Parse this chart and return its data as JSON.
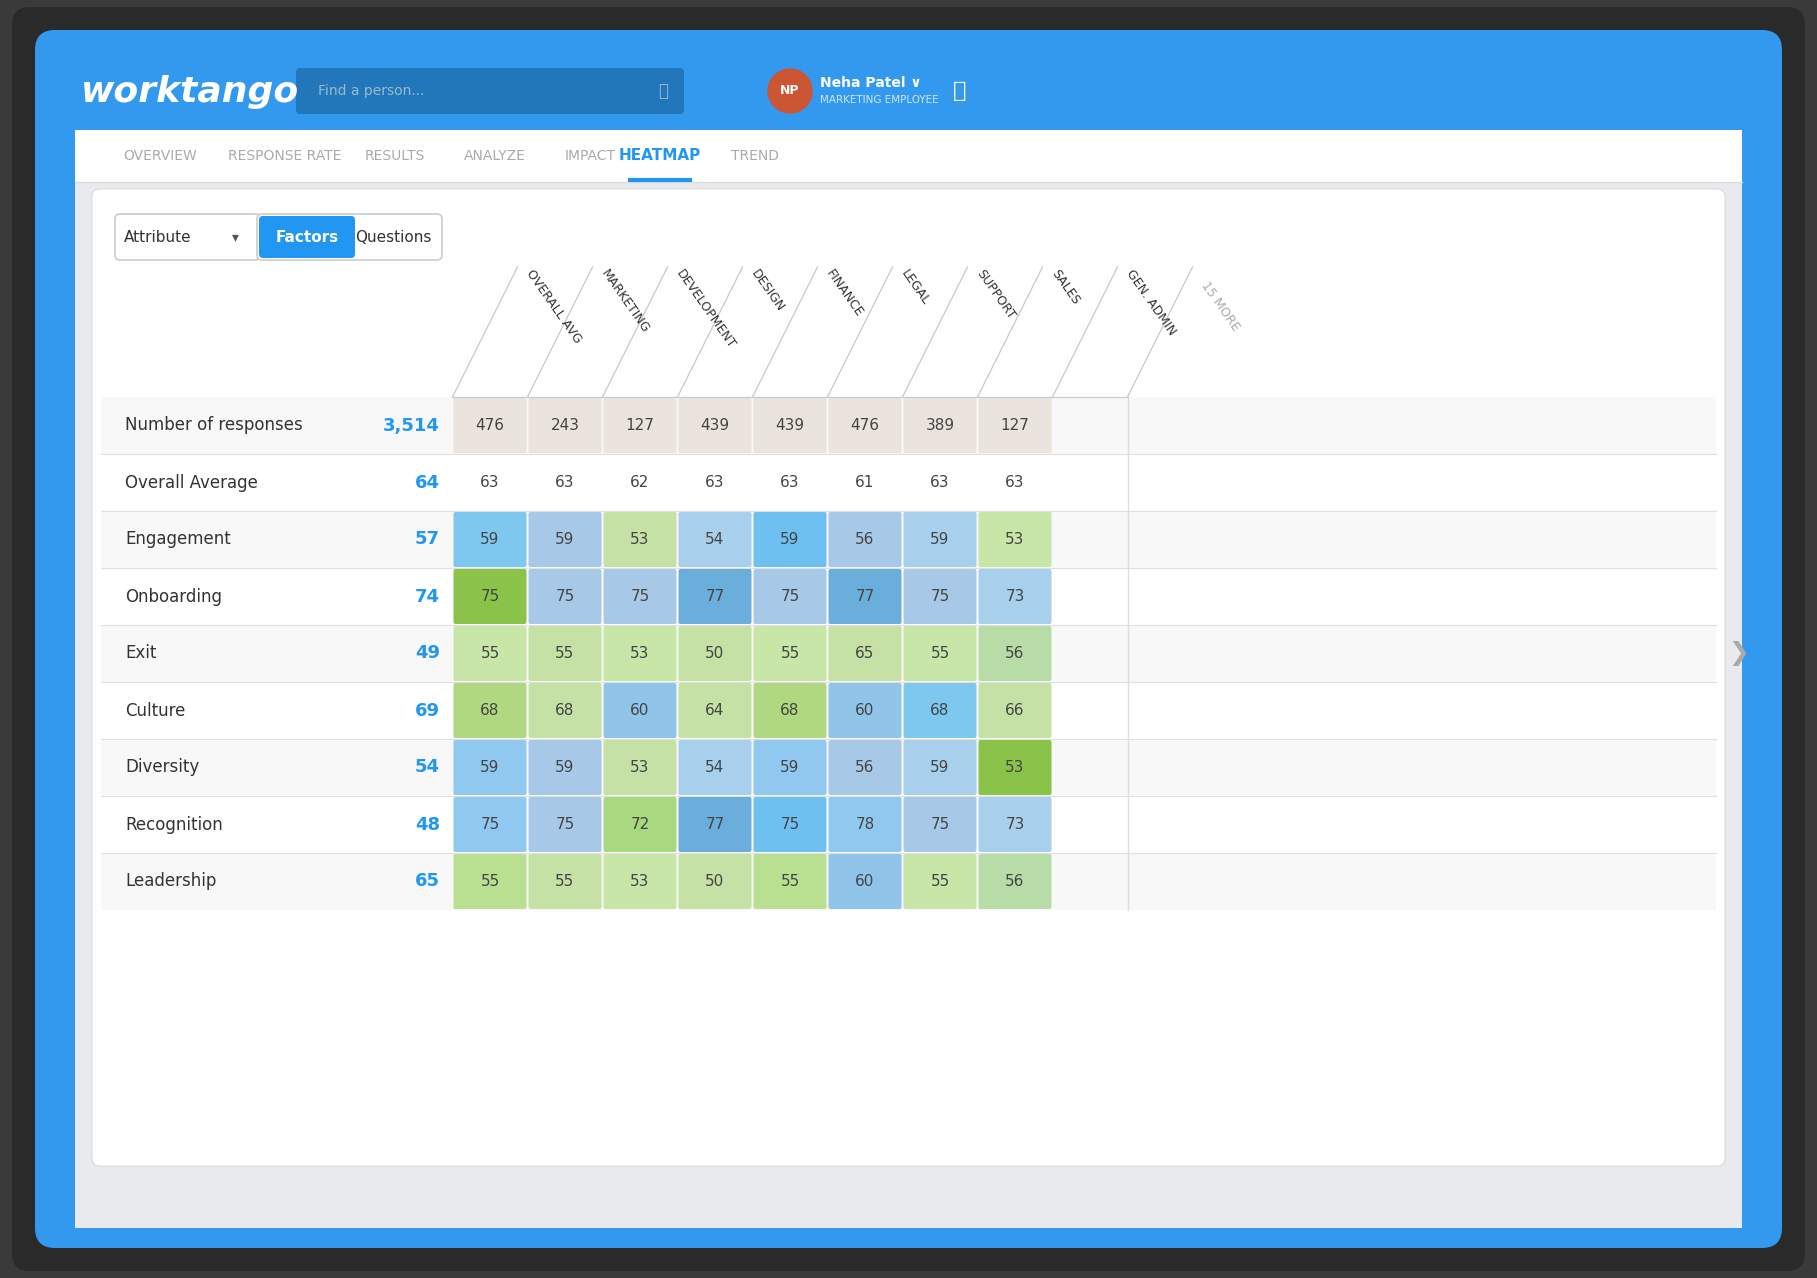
{
  "bg_outer": "#3a3a3a",
  "header_blue": "#3399EE",
  "page_bg": "#E8EAED",
  "white": "#FFFFFF",
  "nav_bg": "#FFFFFF",
  "nav_items": [
    "OVERVIEW",
    "RESPONSE RATE",
    "RESULTS",
    "ANALYZE",
    "IMPACT",
    "HEATMAP",
    "TREND"
  ],
  "active_nav": "HEATMAP",
  "active_nav_color": "#2196F3",
  "inactive_nav_color": "#AAAAAA",
  "blue_accent": "#2196F3",
  "columns": [
    "OVERALL AVG",
    "MARKETING",
    "DEVELOPMENT",
    "DESIGN",
    "FINANCE",
    "LEGAL",
    "SUPPORT",
    "SALES",
    "GEN. ADMIN"
  ],
  "rows": [
    "Number of responses",
    "Overall Average",
    "Engagement",
    "Onboarding",
    "Exit",
    "Culture",
    "Diversity",
    "Recognition",
    "Leadership"
  ],
  "row_values": [
    "3,514",
    "64",
    "57",
    "74",
    "49",
    "69",
    "54",
    "48",
    "65"
  ],
  "table_data": [
    [
      "476",
      "243",
      "127",
      "439",
      "439",
      "476",
      "389",
      "127"
    ],
    [
      "63",
      "63",
      "62",
      "63",
      "63",
      "61",
      "63",
      "63"
    ],
    [
      "59",
      "59",
      "53",
      "54",
      "59",
      "56",
      "59",
      "53"
    ],
    [
      "75",
      "75",
      "75",
      "77",
      "75",
      "77",
      "75",
      "73"
    ],
    [
      "55",
      "55",
      "53",
      "50",
      "55",
      "65",
      "55",
      "56"
    ],
    [
      "68",
      "68",
      "60",
      "64",
      "68",
      "60",
      "68",
      "66"
    ],
    [
      "59",
      "59",
      "53",
      "54",
      "59",
      "56",
      "59",
      "53"
    ],
    [
      "75",
      "75",
      "72",
      "77",
      "75",
      "78",
      "75",
      "73"
    ],
    [
      "55",
      "55",
      "53",
      "50",
      "55",
      "60",
      "55",
      "56"
    ]
  ],
  "cell_colors": [
    [
      "#EAE4DC",
      "#EAE4DC",
      "#EAE4DC",
      "#EAE4DC",
      "#EAE4DC",
      "#EAE4DC",
      "#EAE4DC",
      "#EAE4DC"
    ],
    [
      "none",
      "none",
      "none",
      "none",
      "none",
      "none",
      "none",
      "none"
    ],
    [
      "#7EC8F0",
      "#A8C8E8",
      "#C5E1A5",
      "#A8D0EC",
      "#6EC0F0",
      "#A8C8E8",
      "#A8D0EC",
      "#C8E6A8"
    ],
    [
      "#8BC34A",
      "#A8C8E8",
      "#A8C8E8",
      "#6AAEDC",
      "#A8C8E8",
      "#6AAEDC",
      "#A8C8E8",
      "#A8D0EC"
    ],
    [
      "#C8E6A8",
      "#C5E1A5",
      "#C8E6A8",
      "#C5E1A5",
      "#C8E6A8",
      "#C5E1A5",
      "#C8E6A8",
      "#B8DCA8"
    ],
    [
      "#B0D880",
      "#C5E1A5",
      "#90C4E8",
      "#C5E1A5",
      "#B0D880",
      "#90C4E8",
      "#7EC8F0",
      "#C5E1A5"
    ],
    [
      "#90C8F0",
      "#A8C8E8",
      "#C5E1A5",
      "#A8D0EC",
      "#90C8F0",
      "#A8C8E8",
      "#A8D0EC",
      "#8BC34A"
    ],
    [
      "#90C8F0",
      "#A8C8E8",
      "#A8D880",
      "#6AAEDC",
      "#6EC0F0",
      "#90C8F0",
      "#A8C8E8",
      "#A8D0EC"
    ],
    [
      "#B8E090",
      "#C5E1A5",
      "#C8E6A8",
      "#C5E1A5",
      "#B8E090",
      "#90C4E8",
      "#C8E6A8",
      "#B8DCA8"
    ]
  ],
  "divider_color": "#E0E0E0",
  "text_dark": "#333333",
  "text_medium": "#888888"
}
